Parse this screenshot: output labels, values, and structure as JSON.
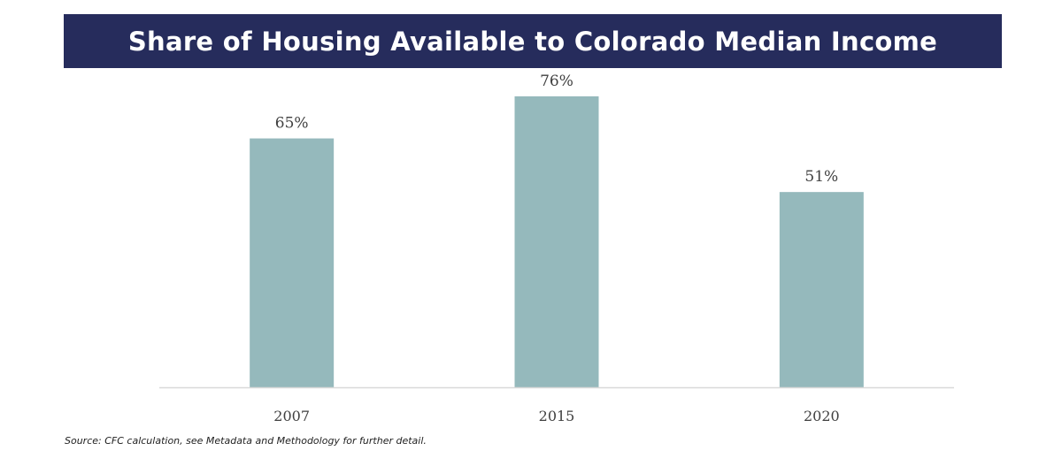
{
  "colors": {
    "banner": "#262c5c",
    "bar": "#95b9bc",
    "axis": "#d9d9d9",
    "label_text": "#404040"
  },
  "chart_data": {
    "type": "bar",
    "title": "Share of Housing Available to Colorado Median Income",
    "categories": [
      "2007",
      "2015",
      "2020"
    ],
    "values": [
      65,
      76,
      51
    ],
    "value_labels": [
      "65%",
      "76%",
      "51%"
    ],
    "unit": "%",
    "ylim": [
      0,
      80
    ],
    "grid": false,
    "legend": "none"
  },
  "source_note": "Source: CFC calculation, see Metadata and Methodology for further detail."
}
